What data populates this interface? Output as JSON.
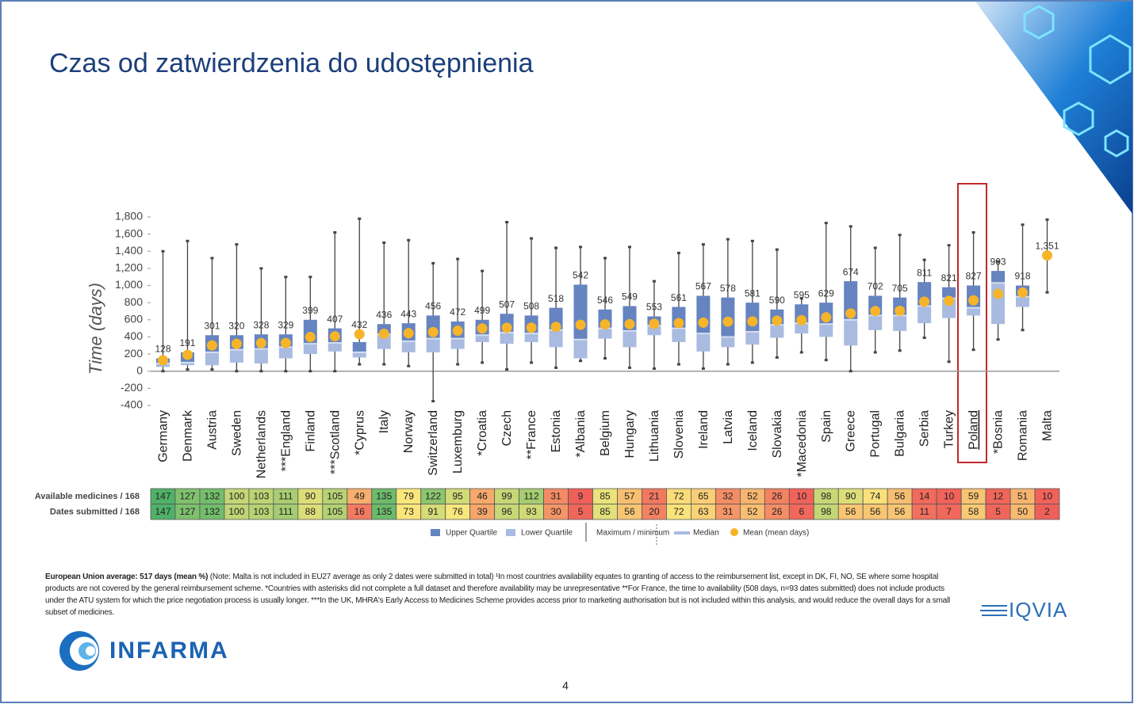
{
  "slide": {
    "title": "Czas od zatwierdzenia do udostępnienia",
    "page_number": "4",
    "logo_left": "INFARMA",
    "logo_right": "IQVIA"
  },
  "chart_data": {
    "type": "box",
    "y_label": "Time (days)",
    "categories": [
      "Germany",
      "Denmark",
      "Austria",
      "Sweden",
      "Netherlands",
      "***England",
      "Finland",
      "***Scotland",
      "*Cyprus",
      "Italy",
      "Norway",
      "Switzerland",
      "Luxemburg",
      "*Croatia",
      "Czech",
      "**France",
      "Estonia",
      "*Albania",
      "Belgium",
      "Hungary",
      "Lithuania",
      "Slovenia",
      "Ireland",
      "Latvia",
      "Iceland",
      "Slovakia",
      "*Macedonia",
      "Spain",
      "Greece",
      "Portugal",
      "Bulgaria",
      "Serbia",
      "Turkey",
      "Poland",
      "*Bosnia",
      "Romania",
      "Malta"
    ],
    "min": [
      0,
      20,
      20,
      0,
      0,
      0,
      0,
      0,
      80,
      80,
      60,
      -350,
      80,
      100,
      20,
      100,
      40,
      120,
      150,
      40,
      30,
      80,
      30,
      80,
      100,
      160,
      220,
      130,
      0,
      220,
      240,
      390,
      110,
      250,
      370,
      480,
      920
    ],
    "q1": [
      50,
      70,
      70,
      100,
      90,
      150,
      200,
      230,
      160,
      260,
      220,
      220,
      260,
      340,
      320,
      340,
      280,
      150,
      380,
      280,
      420,
      340,
      230,
      280,
      310,
      390,
      440,
      400,
      300,
      480,
      470,
      560,
      620,
      650,
      550,
      750,
      null
    ],
    "median": [
      90,
      100,
      220,
      250,
      260,
      280,
      320,
      330,
      220,
      430,
      350,
      380,
      380,
      420,
      450,
      440,
      480,
      370,
      500,
      470,
      530,
      500,
      440,
      400,
      460,
      540,
      560,
      550,
      600,
      650,
      650,
      760,
      850,
      740,
      1030,
      870,
      null
    ],
    "q3": [
      150,
      220,
      420,
      420,
      430,
      430,
      600,
      500,
      340,
      550,
      560,
      650,
      580,
      600,
      670,
      650,
      740,
      1010,
      720,
      760,
      640,
      750,
      880,
      860,
      800,
      720,
      780,
      800,
      1050,
      880,
      860,
      1040,
      980,
      1000,
      1170,
      1000,
      null
    ],
    "max": [
      1400,
      1520,
      1320,
      1480,
      1200,
      1100,
      1100,
      1620,
      1780,
      1500,
      1530,
      1260,
      1310,
      1170,
      1740,
      1550,
      1440,
      1450,
      1320,
      1450,
      1050,
      1380,
      1480,
      1540,
      1520,
      1420,
      850,
      1730,
      1690,
      1440,
      1590,
      1300,
      1470,
      1620,
      1280,
      1710,
      1770
    ],
    "mean": [
      128,
      191,
      301,
      320,
      328,
      329,
      399,
      407,
      432,
      436,
      443,
      456,
      472,
      499,
      507,
      508,
      518,
      542,
      546,
      549,
      553,
      561,
      567,
      578,
      581,
      590,
      595,
      629,
      674,
      702,
      705,
      811,
      821,
      827,
      903,
      918,
      1351
    ],
    "value_labels": [
      "128",
      "191",
      "301",
      "320",
      "328",
      "329",
      "399",
      "407",
      "432",
      "436",
      "443",
      "456",
      "472",
      "499",
      "507",
      "508",
      "518",
      "542",
      "546",
      "549",
      "553",
      "561",
      "567",
      "578",
      "581",
      "590",
      "595",
      "629",
      "674",
      "702",
      "705",
      "811",
      "821",
      "827",
      "903",
      "918",
      "1,351"
    ],
    "ylim": [
      -400,
      1800
    ],
    "yticks": [
      -400,
      -200,
      0,
      200,
      400,
      600,
      800,
      {
        "value": 1000,
        "label": "1,000"
      },
      {
        "value": 1200,
        "label": "1,200"
      },
      {
        "value": 1400,
        "label": "1,400"
      },
      {
        "value": 1600,
        "label": "1,600"
      },
      {
        "value": 1800,
        "label": "1,800"
      }
    ],
    "colors": {
      "upper_quartile": "#6584c0",
      "lower_quartile": "#a9bbe0",
      "whisker": "#444444",
      "median": "#d7def0",
      "mean": "#f6b42a"
    },
    "legend": [
      "Upper Quartile",
      "Lower Quartile",
      "Maximum / minimum",
      "Median",
      "Mean (mean days)"
    ],
    "highlight": "Poland"
  },
  "table": {
    "colors": [
      "#f0605a",
      "#fbe87c",
      "#4fb168"
    ],
    "rows": [
      {
        "label": "Available medicines / 168",
        "values": [
          147,
          127,
          132,
          100,
          103,
          111,
          90,
          105,
          49,
          135,
          79,
          122,
          95,
          46,
          99,
          112,
          31,
          9,
          85,
          57,
          21,
          72,
          65,
          32,
          52,
          26,
          10,
          98,
          90,
          74,
          56,
          14,
          10,
          59,
          12,
          51,
          10
        ]
      },
      {
        "label": "Dates submitted / 168",
        "values": [
          147,
          127,
          132,
          100,
          103,
          111,
          88,
          105,
          16,
          135,
          73,
          91,
          76,
          39,
          96,
          93,
          30,
          5,
          85,
          56,
          20,
          72,
          63,
          31,
          52,
          26,
          6,
          98,
          56,
          56,
          56,
          11,
          7,
          58,
          5,
          50,
          2
        ]
      }
    ]
  },
  "footnote": {
    "bold": "European Union average: 517 days (mean %)",
    "text": " (Note: Malta is not included in EU27 average as only 2 dates were submitted in total) ¹In most countries availability equates to granting of access to the reimbursement list, except in DK, FI, NO, SE where some hospital products are not covered by the general reimbursement scheme. *Countries with asterisks did not complete a full dataset and therefore availability may be unrepresentative **For France, the time to availability (508 days, n=93 dates submitted) does not include products under the ATU system for which the price negotiation process is usually longer. ***In the UK, MHRA's Early Access to Medicines Scheme provides access prior to marketing authorisation but is not included within this analysis, and would reduce the overall days for a small subset of medicines."
  }
}
